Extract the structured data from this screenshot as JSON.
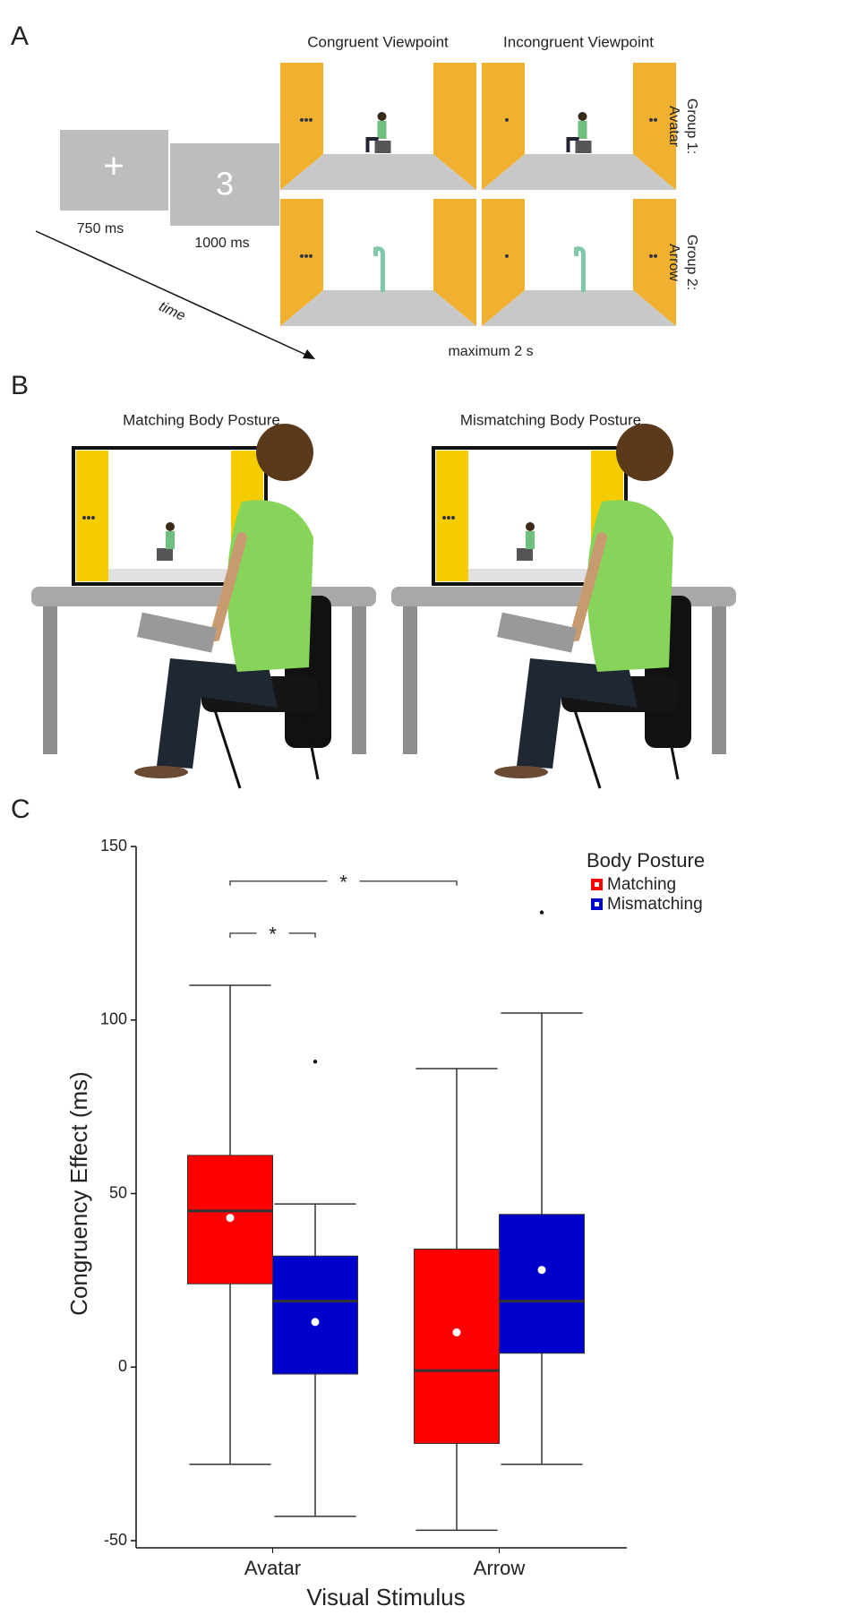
{
  "panel_a": {
    "label": "A",
    "headers": [
      "Congruent Viewpoint",
      "Incongruent Viewpoint"
    ],
    "groups": [
      {
        "line1": "Group 1:",
        "line2": "Avatar"
      },
      {
        "line1": "Group 2:",
        "line2": "Arrow"
      }
    ],
    "fixation": "+",
    "countdown": "3",
    "fixation_duration": "750 ms",
    "countdown_duration": "1000 ms",
    "time_label": "time",
    "stimulus_duration": "maximum 2 s"
  },
  "panel_b": {
    "label": "B",
    "headers": [
      "Matching Body Posture",
      "Mismatching Body Posture"
    ]
  },
  "panel_c": {
    "label": "C"
  },
  "chart_data": {
    "type": "box",
    "categories": [
      "Avatar",
      "Arrow"
    ],
    "x_label": "Visual Stimulus",
    "y_label": "Congruency Effect (ms)",
    "ylim": [
      -50,
      150
    ],
    "yticks": [
      -50,
      0,
      50,
      100,
      150
    ],
    "legend_title": "Body Posture",
    "series": [
      {
        "name": "Matching",
        "color": "#ff0000",
        "low": [
          -28,
          -47
        ],
        "q1": [
          24,
          -22
        ],
        "median": [
          45,
          -1
        ],
        "q3": [
          61,
          34
        ],
        "high": [
          110,
          86
        ],
        "mean": [
          43,
          10
        ]
      },
      {
        "name": "Mismatching",
        "color": "#0000cc",
        "low": [
          -43,
          -28
        ],
        "q1": [
          -2,
          4
        ],
        "median": [
          19,
          19
        ],
        "q3": [
          32,
          44
        ],
        "high": [
          47,
          102
        ],
        "mean": [
          13,
          28
        ],
        "outliers": [
          [
            88
          ],
          [
            131
          ]
        ]
      }
    ],
    "annotations": [
      {
        "text": "*",
        "y": 125
      },
      {
        "text": "*",
        "y": 140
      }
    ]
  }
}
